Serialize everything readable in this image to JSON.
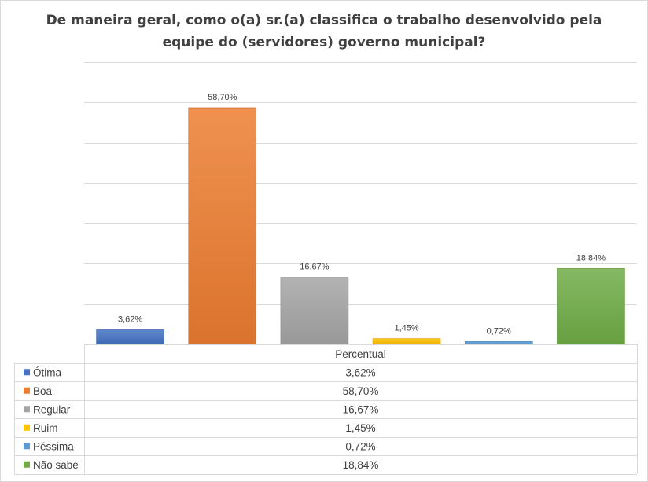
{
  "chart_data": {
    "type": "bar",
    "title_line1": "De maneira geral, como o(a) sr.(a) classifica o trabalho desenvolvido pela",
    "title_line2": "equipe do (servidores) governo municipal?",
    "series_header": "Percentual",
    "categories": [
      "Ótima",
      "Boa",
      "Regular",
      "Ruim",
      "Péssima",
      "Não sabe"
    ],
    "values": [
      3.62,
      58.7,
      16.67,
      1.45,
      0.72,
      18.84
    ],
    "value_labels": [
      "3,62%",
      "58,70%",
      "16,67%",
      "1,45%",
      "0,72%",
      "18,84%"
    ],
    "colors": [
      "#4472c4",
      "#ed7d31",
      "#a5a5a5",
      "#ffc000",
      "#5b9bd5",
      "#70ad47"
    ],
    "ylim": [
      0,
      70
    ],
    "grid": true,
    "legend": "data-table-below"
  }
}
